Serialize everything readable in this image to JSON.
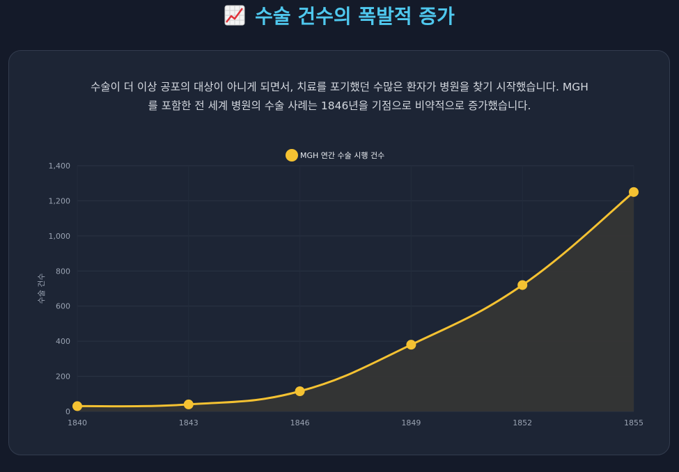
{
  "header": {
    "icon": "chart-increasing-icon",
    "title": "수술 건수의 폭발적 증가"
  },
  "description": {
    "line1": "수술이 더 이상 공포의 대상이 아니게 되면서, 치료를 포기했던 수많은 환자가 병원을 찾기 시작했습니다. MGH",
    "line2": "를 포함한 전 세계 병원의 수술 사례는 1846년을 기점으로 비약적으로 증가했습니다."
  },
  "colors": {
    "accent": "#4fc8ee",
    "series": "#f5c232",
    "fill": "#353535",
    "card": "#1d2535",
    "background": "#141a29"
  },
  "chart_data": {
    "type": "area",
    "title": "",
    "xlabel": "",
    "ylabel": "수술 건수",
    "x": [
      1840,
      1843,
      1846,
      1849,
      1852,
      1855
    ],
    "x_tick_labels": [
      "1840",
      "1843",
      "1846",
      "1849",
      "1852",
      "1855"
    ],
    "ylim": [
      0,
      1400
    ],
    "y_ticks": [
      0,
      200,
      400,
      600,
      800,
      1000,
      1200,
      1400
    ],
    "y_tick_labels": [
      "0",
      "200",
      "400",
      "600",
      "800",
      "1,000",
      "1,200",
      "1,400"
    ],
    "grid": true,
    "legend_position": "top-center",
    "series": [
      {
        "name": "MGH 연간 수술 시행 건수",
        "values": [
          30,
          40,
          115,
          380,
          720,
          1250
        ]
      }
    ]
  }
}
